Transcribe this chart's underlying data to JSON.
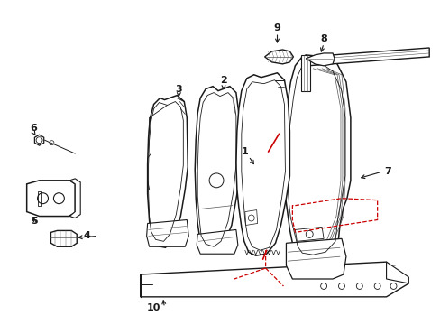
{
  "bg_color": "#ffffff",
  "line_color": "#1a1a1a",
  "gray_color": "#555555",
  "red_color": "#cc0000",
  "fig_width": 4.89,
  "fig_height": 3.6,
  "dpi": 100
}
